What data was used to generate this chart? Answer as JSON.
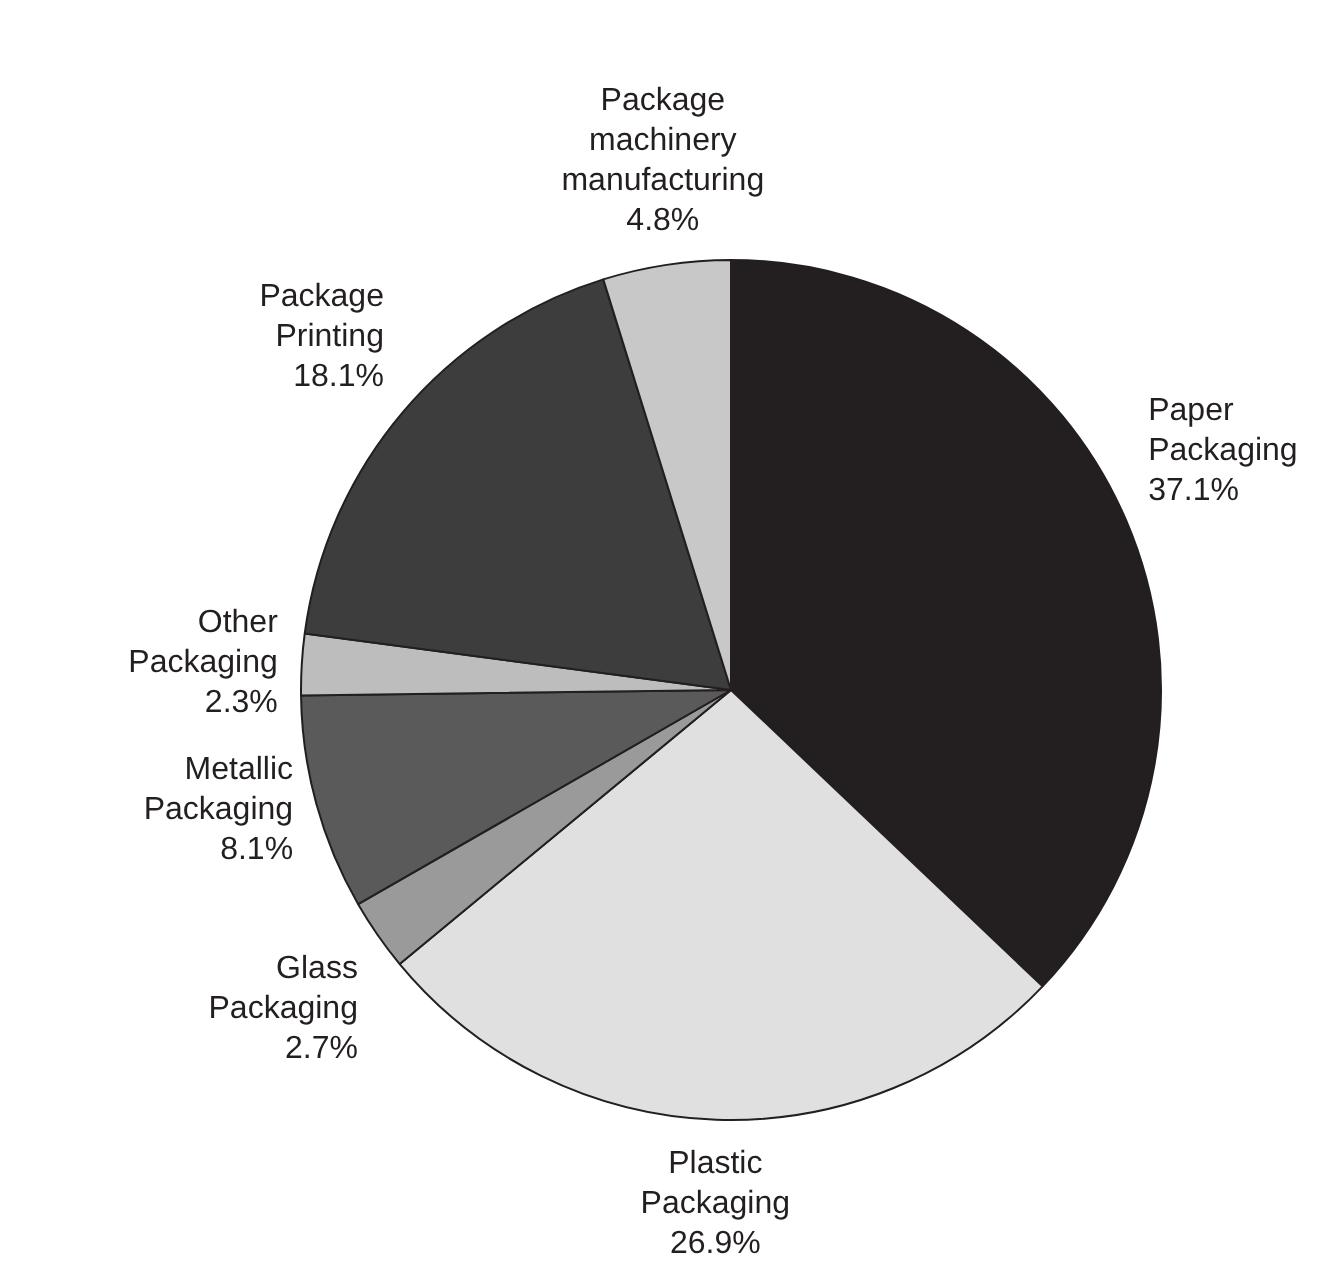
{
  "chart_data": {
    "type": "pie",
    "categories": [
      "Paper Packaging",
      "Plastic Packaging",
      "Glass Packaging",
      "Metallic Packaging",
      "Other Packaging",
      "Package Printing",
      "Package machinery manufacturing"
    ],
    "values": [
      37.1,
      26.9,
      2.7,
      8.1,
      2.3,
      18.1,
      4.8
    ],
    "value_labels": [
      "37.1%",
      "26.9%",
      "2.7%",
      "8.1%",
      "2.3%",
      "18.1%",
      "4.8%"
    ],
    "colors": [
      "#231f20",
      "#e0e0e0",
      "#9a9a9a",
      "#5a5a5a",
      "#bdbdbd",
      "#3d3d3d",
      "#c8c8c8"
    ],
    "legend": false
  }
}
